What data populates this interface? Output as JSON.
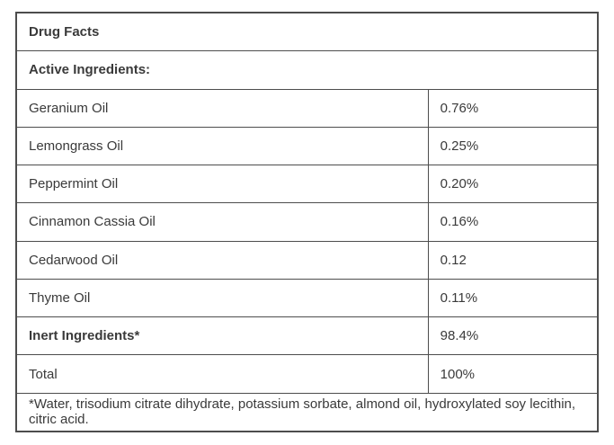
{
  "table": {
    "title": "Drug Facts",
    "section_header": "Active Ingredients:",
    "rows": [
      {
        "label": "Geranium Oil",
        "value": "0.76%"
      },
      {
        "label": "Lemongrass Oil",
        "value": "0.25%"
      },
      {
        "label": "Peppermint Oil",
        "value": "0.20%"
      },
      {
        "label": "Cinnamon Cassia Oil",
        "value": "0.16%"
      },
      {
        "label": "Cedarwood Oil",
        "value": "0.12"
      },
      {
        "label": "Thyme Oil",
        "value": "0.11%"
      }
    ],
    "inert": {
      "label": "Inert Ingredients*",
      "value": "98.4%"
    },
    "total": {
      "label": "Total",
      "value": "100%"
    },
    "footnote": "*Water, trisodium citrate dihydrate, potassium sorbate, almond oil, hydroxylated soy lecithin, citric acid."
  },
  "colors": {
    "border": "#4d4d4d",
    "text": "#3a3a3a",
    "background": "#ffffff"
  }
}
